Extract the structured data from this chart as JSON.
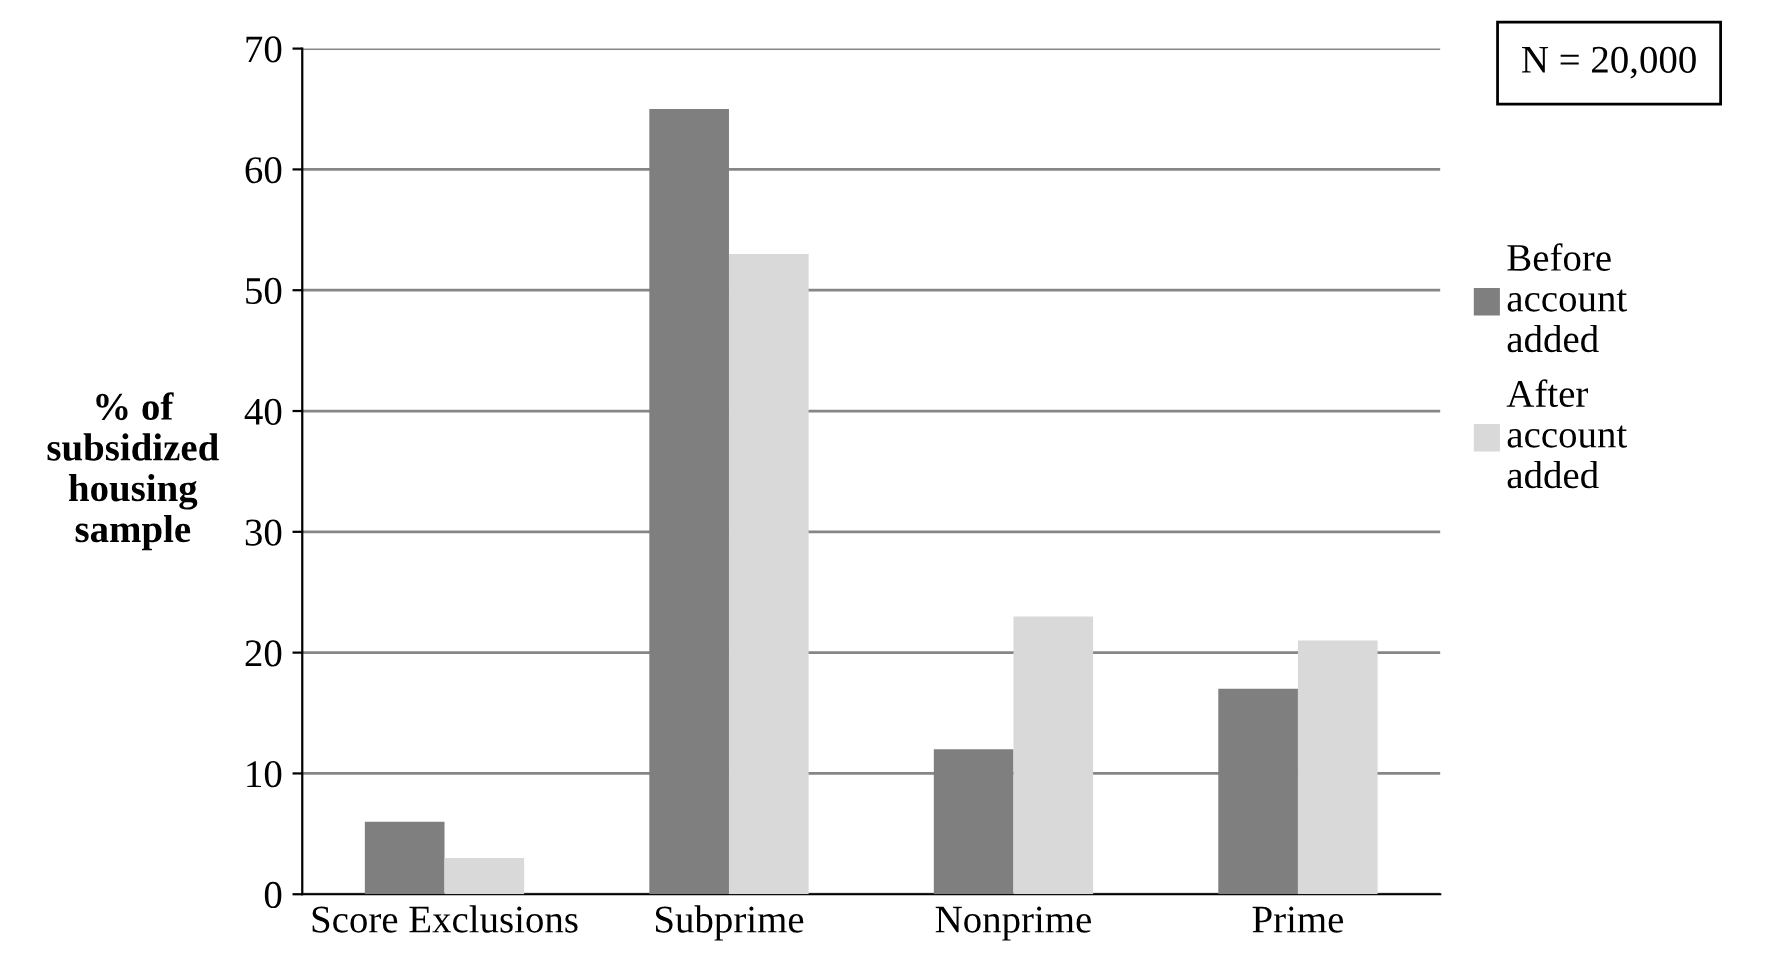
{
  "chart_data": {
    "type": "bar",
    "ylabel": "% of\nsubsidized\nhousing\nsample",
    "categories": [
      "Score Exclusions",
      "Subprime",
      "Nonprime",
      "Prime"
    ],
    "series": [
      {
        "name": "Before\naccount\nadded",
        "color": "#7f7f7f",
        "values": [
          6,
          65,
          12,
          17
        ]
      },
      {
        "name": "After\naccount\nadded",
        "color": "#d9d9d9",
        "values": [
          3,
          53,
          23,
          21
        ]
      }
    ],
    "ylim": [
      0,
      70
    ],
    "yticks": [
      0,
      10,
      20,
      30,
      40,
      50,
      60,
      70
    ],
    "grid": "y",
    "legend": "right",
    "annotations": [
      "N = 20,000"
    ]
  }
}
